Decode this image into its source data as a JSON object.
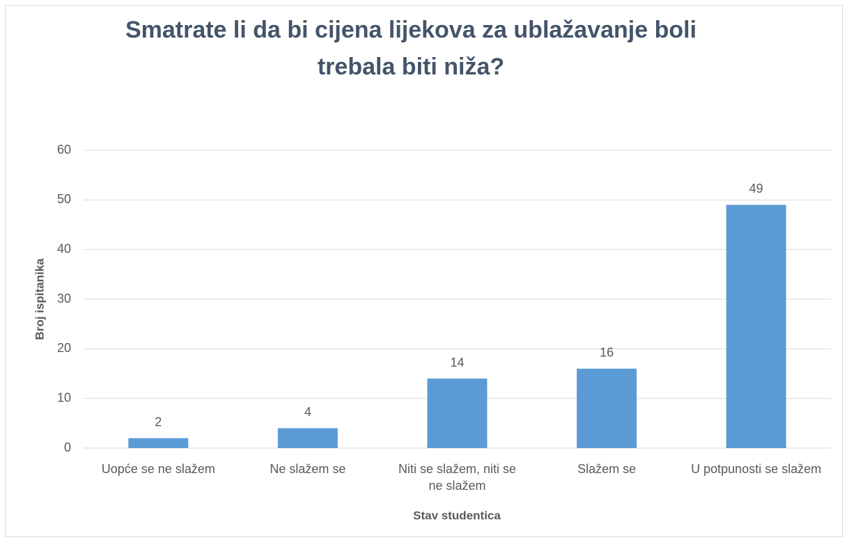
{
  "chart_data": {
    "type": "bar",
    "title": [
      "Smatrate li da bi cijena lijekova za ublažavanje boli",
      "trebala biti niža?"
    ],
    "x_label": "Stav studentica",
    "y_label": "Broj ispitanika",
    "categories": [
      "Uopće se ne slažem",
      "Ne slažem se",
      "Niti se slažem, niti se ne slažem",
      "Slažem se",
      "U potpunosti se slažem"
    ],
    "values": [
      2,
      4,
      14,
      16,
      49
    ],
    "color": "#5b9bd5",
    "ylim": [
      0,
      60
    ],
    "yticks": [
      0,
      10,
      20,
      30,
      40,
      50,
      60
    ],
    "grid": true
  }
}
